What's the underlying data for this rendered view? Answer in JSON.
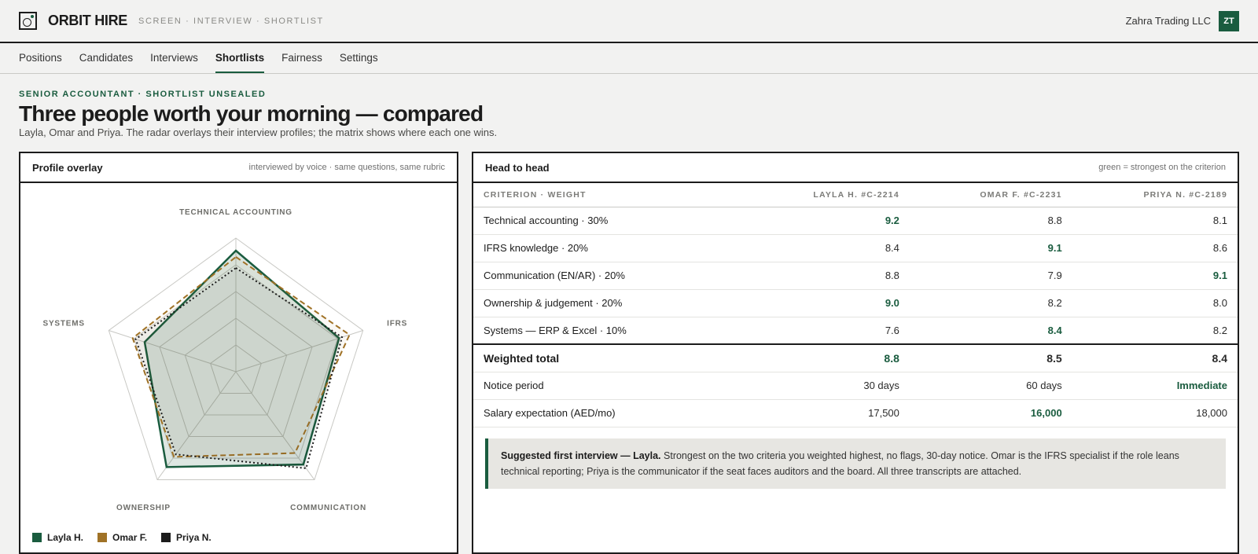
{
  "app": {
    "brand": "ORBIT HIRE",
    "breadcrumb": "SCREEN · INTERVIEW · SHORTLIST",
    "org": "Zahra Trading LLC",
    "avatar_initials": "ZT"
  },
  "nav": {
    "tabs": [
      {
        "label": "Positions",
        "active": false
      },
      {
        "label": "Candidates",
        "active": false
      },
      {
        "label": "Interviews",
        "active": false
      },
      {
        "label": "Shortlists",
        "active": true
      },
      {
        "label": "Fairness",
        "active": false
      },
      {
        "label": "Settings",
        "active": false
      }
    ]
  },
  "page": {
    "eyebrow": "SENIOR ACCOUNTANT · SHORTLIST UNSEALED",
    "title": "Three people worth your morning — compared",
    "subtitle": "Layla, Omar and Priya. The radar overlays their interview profiles; the matrix shows where each one wins."
  },
  "overlay": {
    "title": "Profile overlay",
    "note": "interviewed by voice · same questions, same rubric",
    "axes": [
      "TECHNICAL ACCOUNTING",
      "IFRS",
      "COMMUNICATION",
      "OWNERSHIP",
      "SYSTEMS"
    ],
    "candidates": [
      {
        "name": "Layla H.",
        "color": "#1a5c3f",
        "style": "solid",
        "values": [
          9.2,
          8.4,
          8.8,
          9.0,
          7.6
        ]
      },
      {
        "name": "Omar F.",
        "color": "#a07226",
        "style": "dashed",
        "values": [
          8.8,
          9.1,
          7.9,
          8.2,
          8.4
        ]
      },
      {
        "name": "Priya N.",
        "color": "#1c1c1c",
        "style": "dotted",
        "values": [
          8.1,
          8.6,
          9.1,
          8.0,
          8.2
        ]
      }
    ]
  },
  "matrix": {
    "title": "Head to head",
    "note": "green = strongest on the criterion",
    "columns": [
      "CRITERION · WEIGHT",
      "LAYLA H. #C-2214",
      "OMAR F. #C-2231",
      "PRIYA N. #C-2189"
    ],
    "rows": [
      {
        "label": "Technical accounting · 30%",
        "values": [
          "9.2",
          "8.8",
          "8.1"
        ],
        "win": 0
      },
      {
        "label": "IFRS knowledge · 20%",
        "values": [
          "8.4",
          "9.1",
          "8.6"
        ],
        "win": 1
      },
      {
        "label": "Communication (EN/AR) · 20%",
        "values": [
          "8.8",
          "7.9",
          "9.1"
        ],
        "win": 2
      },
      {
        "label": "Ownership & judgement · 20%",
        "values": [
          "9.0",
          "8.2",
          "8.0"
        ],
        "win": 0
      },
      {
        "label": "Systems — ERP & Excel · 10%",
        "values": [
          "7.6",
          "8.4",
          "8.2"
        ],
        "win": 1
      }
    ],
    "total": {
      "label": "Weighted total",
      "values": [
        "8.8",
        "8.5",
        "8.4"
      ],
      "win": 0
    },
    "extras": [
      {
        "label": "Notice period",
        "values": [
          "30 days",
          "60 days",
          "Immediate"
        ],
        "win": 2
      },
      {
        "label": "Salary expectation (AED/mo)",
        "values": [
          "17,500",
          "16,000",
          "18,000"
        ],
        "win": 1
      }
    ]
  },
  "callout": {
    "lead": "Suggested first interview — Layla.",
    "body": " Strongest on the two criteria you weighted highest, no flags, 30-day notice. Omar is the IFRS specialist if the role leans technical reporting; Priya is the communicator if the seat faces auditors and the board. All three transcripts are attached."
  }
}
